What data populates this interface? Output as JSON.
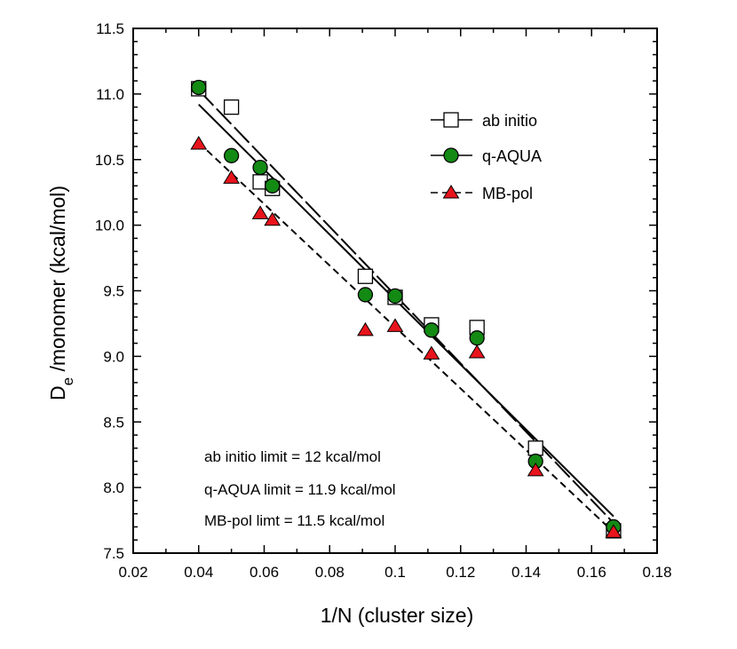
{
  "chart_data": {
    "type": "scatter",
    "xlabel": "1/N (cluster size)",
    "ylabel_main": "D",
    "ylabel_sub": "e",
    "ylabel_rest": " /monomer (kcal/mol)",
    "xlim": [
      0.02,
      0.18
    ],
    "ylim": [
      7.5,
      11.5
    ],
    "xticks": [
      "0.02",
      "0.04",
      "0.06",
      "0.08",
      "0.1",
      "0.12",
      "0.14",
      "0.16",
      "0.18"
    ],
    "yticks": [
      "7.5",
      "8.0",
      "8.5",
      "9.0",
      "9.5",
      "10.0",
      "10.5",
      "11.0",
      "11.5"
    ],
    "grid": false,
    "legend_position": "top-right",
    "series": [
      {
        "name": "ab initio",
        "marker": "square",
        "fill": "#ffffff",
        "stroke": "#000000",
        "line_style": "solid",
        "x": [
          0.04,
          0.05,
          0.0588,
          0.0625,
          0.0909,
          0.1,
          0.1111,
          0.125,
          0.1429,
          0.1667
        ],
        "y": [
          11.04,
          10.9,
          10.33,
          10.28,
          9.61,
          9.45,
          9.24,
          9.22,
          8.3,
          7.67
        ],
        "fit": [
          [
            0.04,
            10.92
          ],
          [
            0.1667,
            7.78
          ]
        ]
      },
      {
        "name": "q-AQUA",
        "marker": "circle",
        "fill": "#138a13",
        "stroke": "#000000",
        "line_style": "long-dash",
        "x": [
          0.04,
          0.05,
          0.0588,
          0.0625,
          0.0909,
          0.1,
          0.1111,
          0.125,
          0.1429,
          0.1667
        ],
        "y": [
          11.05,
          10.53,
          10.44,
          10.3,
          9.47,
          9.46,
          9.2,
          9.14,
          8.2,
          7.7
        ],
        "fit": [
          [
            0.04,
            11.03
          ],
          [
            0.1667,
            7.73
          ]
        ]
      },
      {
        "name": "MB-pol",
        "marker": "triangle",
        "fill": "#e8141d",
        "stroke": "#000000",
        "line_style": "short-dash",
        "x": [
          0.04,
          0.05,
          0.0588,
          0.0625,
          0.0909,
          0.1,
          0.1111,
          0.125,
          0.1429,
          0.1667
        ],
        "y": [
          10.62,
          10.36,
          10.09,
          10.04,
          9.2,
          9.23,
          9.02,
          9.03,
          8.13,
          7.66
        ],
        "fit": [
          [
            0.04,
            10.63
          ],
          [
            0.1667,
            7.66
          ]
        ]
      }
    ],
    "annotations": [
      "ab initio limit = 12 kcal/mol",
      "q-AQUA limit = 11.9 kcal/mol",
      "MB-pol limt = 11.5 kcal/mol"
    ]
  }
}
